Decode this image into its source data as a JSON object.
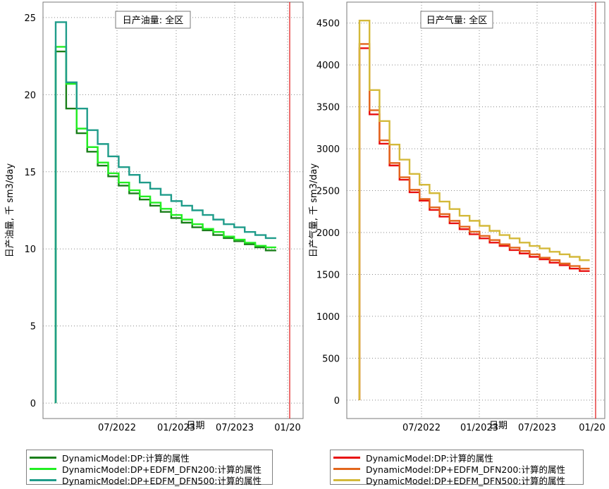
{
  "chart_data": [
    {
      "type": "line",
      "step": true,
      "title": "日产油量: 全区",
      "xlabel": "日期",
      "ylabel": "日产油量, 千 sm3/day",
      "x_ticks": [
        "07/2022",
        "01/2023",
        "07/2023",
        "01/20"
      ],
      "y_ticks": [
        0,
        5,
        10,
        15,
        20,
        25
      ],
      "ylim": [
        -1,
        26
      ],
      "grid": true,
      "legend_position": "below",
      "marker_label": "",
      "series": [
        {
          "name": "DynamicModel:DP:计算的属性",
          "color": "#1a7f1a",
          "values": [
            22.8,
            19.1,
            17.5,
            16.3,
            15.4,
            14.7,
            14.1,
            13.6,
            13.2,
            12.8,
            12.4,
            12.0,
            11.7,
            11.4,
            11.2,
            10.9,
            10.7,
            10.5,
            10.3,
            10.1,
            9.9
          ]
        },
        {
          "name": "DynamicModel:DP+EDFM_DFN200:计算的属性",
          "color": "#22ee22",
          "values": [
            23.1,
            20.7,
            17.8,
            16.6,
            15.6,
            14.9,
            14.3,
            13.8,
            13.4,
            13.0,
            12.6,
            12.2,
            11.9,
            11.6,
            11.3,
            11.1,
            10.8,
            10.6,
            10.4,
            10.2,
            10.1
          ]
        },
        {
          "name": "DynamicModel:DP+EDFM_DFN500:计算的属性",
          "color": "#1f9c8a",
          "values": [
            24.7,
            20.8,
            19.1,
            17.7,
            16.8,
            16.0,
            15.3,
            14.8,
            14.3,
            13.9,
            13.5,
            13.1,
            12.8,
            12.5,
            12.2,
            11.9,
            11.6,
            11.4,
            11.1,
            10.9,
            10.7
          ]
        }
      ]
    },
    {
      "type": "line",
      "step": true,
      "title": "日产气量: 全区",
      "xlabel": "日期",
      "ylabel": "日产气量, 千 sm3/day",
      "x_ticks": [
        "07/2022",
        "01/2023",
        "07/2023",
        "01/20"
      ],
      "y_ticks": [
        0,
        500,
        1000,
        1500,
        2000,
        2500,
        3000,
        3500,
        4000,
        4500
      ],
      "ylim": [
        -220,
        4750
      ],
      "grid": true,
      "legend_position": "below",
      "marker_label": "",
      "series": [
        {
          "name": "DynamicModel:DP:计算的属性",
          "color": "#e81010",
          "values": [
            4200,
            3410,
            3060,
            2800,
            2630,
            2480,
            2380,
            2270,
            2190,
            2110,
            2040,
            1980,
            1930,
            1880,
            1840,
            1790,
            1750,
            1710,
            1680,
            1640,
            1610,
            1570,
            1540
          ]
        },
        {
          "name": "DynamicModel:DP+EDFM_DFN200:计算的属性",
          "color": "#e2661c",
          "values": [
            4250,
            3460,
            3100,
            2830,
            2660,
            2510,
            2400,
            2300,
            2220,
            2140,
            2070,
            2010,
            1960,
            1910,
            1860,
            1820,
            1780,
            1740,
            1700,
            1670,
            1630,
            1600,
            1570
          ]
        },
        {
          "name": "DynamicModel:DP+EDFM_DFN500:计算的属性",
          "color": "#d4b93a",
          "values": [
            4530,
            3700,
            3330,
            3050,
            2870,
            2700,
            2570,
            2470,
            2370,
            2280,
            2200,
            2140,
            2080,
            2020,
            1970,
            1930,
            1880,
            1840,
            1810,
            1770,
            1740,
            1710,
            1670
          ]
        }
      ]
    }
  ]
}
